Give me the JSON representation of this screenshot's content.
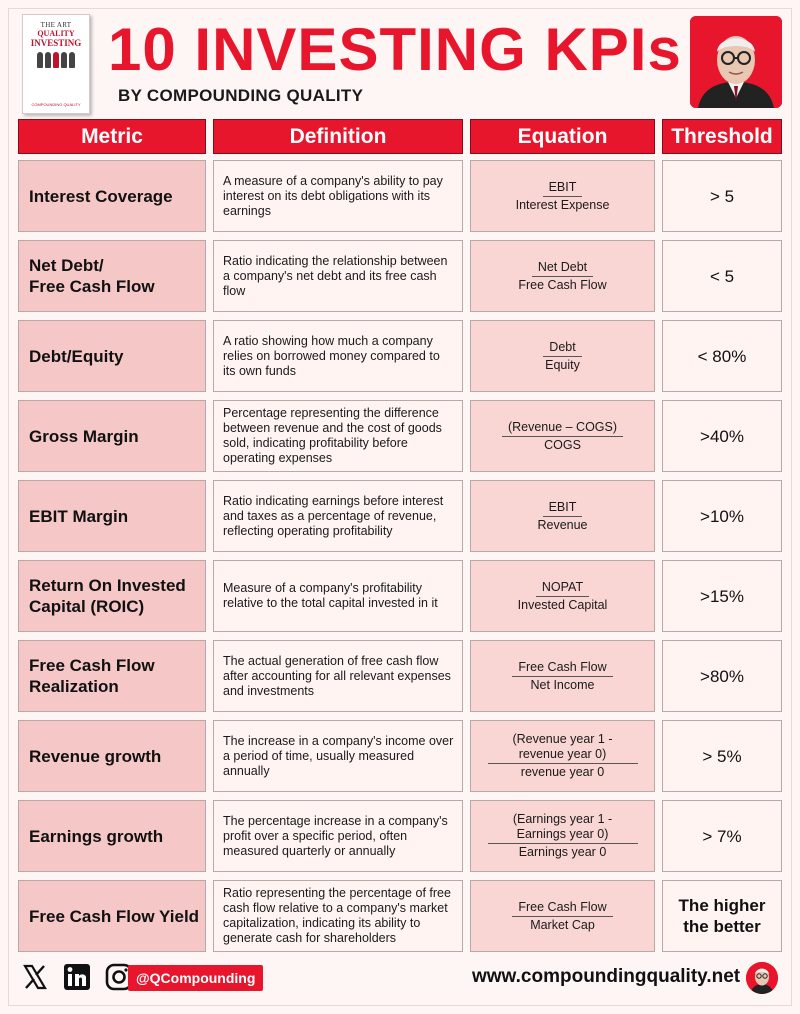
{
  "header": {
    "title": "10 INVESTING KPIs",
    "subtitle": "BY COMPOUNDING QUALITY",
    "book": {
      "top": "THE ART",
      "line1": "QUALITY",
      "line2": "INVESTING",
      "foot": "COMPOUNDING QUALITY"
    }
  },
  "columns": [
    "Metric",
    "Definition",
    "Equation",
    "Threshold"
  ],
  "rows": [
    {
      "metric": "Interest Coverage",
      "definition": "A measure of a company's ability to pay interest on its debt obligations with its earnings",
      "numerator": "EBIT",
      "denominator": "Interest Expense",
      "threshold": "> 5"
    },
    {
      "metric": "Net Debt/\nFree Cash Flow",
      "definition": "Ratio indicating the relationship between a company's net debt and its free cash flow",
      "numerator": "Net Debt",
      "denominator": "Free Cash Flow",
      "threshold": "< 5"
    },
    {
      "metric": "Debt/Equity",
      "definition": "A ratio showing how much a company relies on borrowed money compared to its own funds",
      "numerator": "Debt",
      "denominator": "Equity",
      "threshold": "< 80%"
    },
    {
      "metric": "Gross Margin",
      "definition": "Percentage representing the difference between revenue and the cost of goods sold, indicating profitability before operating expenses",
      "numerator": "(Revenue – COGS)",
      "denominator": "COGS",
      "threshold": ">40%"
    },
    {
      "metric": "EBIT Margin",
      "definition": "Ratio indicating earnings before interest and taxes as a percentage of revenue, reflecting operating profitability",
      "numerator": "EBIT",
      "denominator": "Revenue",
      "threshold": ">10%"
    },
    {
      "metric": "Return On Invested Capital (ROIC)",
      "definition": "Measure of a company's profitability relative to the total capital invested in it",
      "numerator": "NOPAT",
      "denominator": "Invested Capital",
      "threshold": ">15%"
    },
    {
      "metric": "Free Cash Flow Realization",
      "definition": "The actual generation of free cash flow after accounting for all relevant expenses and investments",
      "numerator": "Free Cash Flow",
      "denominator": "Net Income",
      "threshold": ">80%"
    },
    {
      "metric": "Revenue growth",
      "definition": "The increase in a company's income over a period of time, usually measured annually",
      "numerator": "(Revenue year 1 - revenue year 0)",
      "denominator": "revenue year 0",
      "threshold": "> 5%"
    },
    {
      "metric": "Earnings growth",
      "definition": "The percentage increase in a company's profit over a specific period, often measured quarterly or annually",
      "numerator": "(Earnings year 1 - Earnings year 0)",
      "denominator": "Earnings year 0",
      "threshold": "> 7%"
    },
    {
      "metric": "Free Cash Flow Yield",
      "definition": "Ratio representing the percentage of free cash flow relative to a company's market capitalization, indicating its ability to generate cash for shareholders",
      "numerator": "Free Cash Flow",
      "denominator": "Market Cap",
      "threshold": "The higher the better"
    }
  ],
  "footer": {
    "handle": "@QCompounding",
    "website": "www.compoundingquality.net",
    "icons": [
      "x-icon",
      "linkedin-icon",
      "instagram-icon"
    ]
  },
  "colors": {
    "accent": "#e8162d",
    "metric_bg": "#f6c7c7",
    "equation_bg": "#f9d6d4",
    "light_bg": "#fff4f2"
  }
}
